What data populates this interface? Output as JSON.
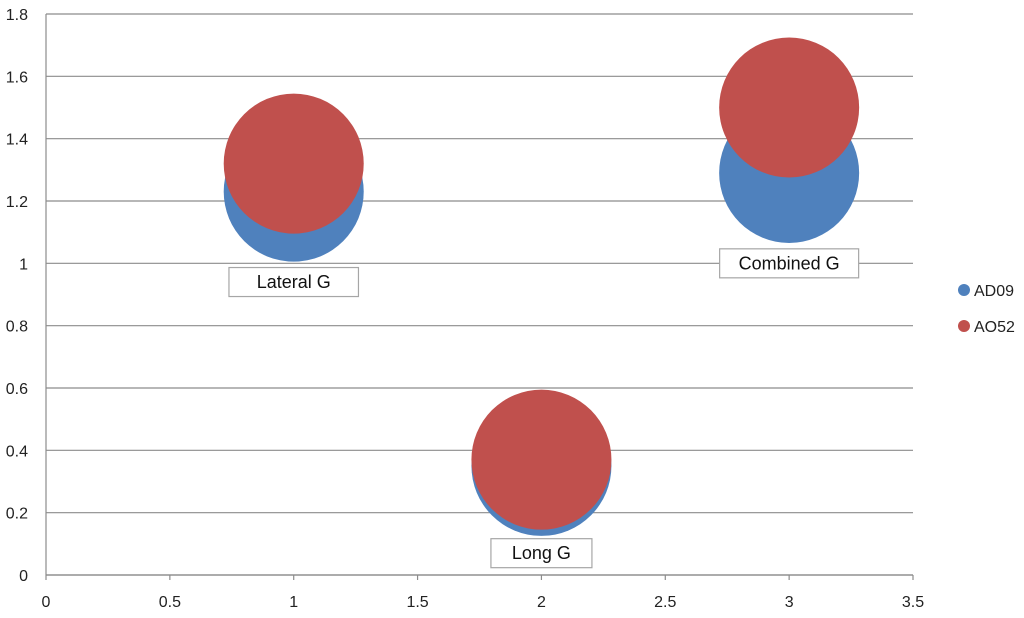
{
  "chart_data": {
    "type": "bubble",
    "title": "",
    "xlabel": "",
    "ylabel": "",
    "xlim": [
      0,
      3.5
    ],
    "ylim": [
      0,
      1.8
    ],
    "x_ticks": [
      "0",
      "0.5",
      "1",
      "1.5",
      "2",
      "2.5",
      "3",
      "3.5"
    ],
    "y_ticks": [
      "0",
      "0.2",
      "0.4",
      "0.6",
      "0.8",
      "1",
      "1.2",
      "1.4",
      "1.6",
      "1.8"
    ],
    "grid": "horizontal",
    "legend_position": "right",
    "series": [
      {
        "name": "AD09",
        "color": "#4F81BD",
        "points": [
          {
            "x": 1,
            "y": 1.23,
            "size": 1.0
          },
          {
            "x": 2,
            "y": 0.35,
            "size": 1.0
          },
          {
            "x": 3,
            "y": 1.29,
            "size": 1.0
          }
        ]
      },
      {
        "name": "AO52",
        "color": "#C0504D",
        "points": [
          {
            "x": 1,
            "y": 1.32,
            "size": 1.0
          },
          {
            "x": 2,
            "y": 0.37,
            "size": 1.0
          },
          {
            "x": 3,
            "y": 1.5,
            "size": 1.0
          }
        ]
      }
    ],
    "annotations": [
      {
        "text": "Lateral G",
        "x": 1,
        "y": 0.94
      },
      {
        "text": "Long G",
        "x": 2,
        "y": 0.07
      },
      {
        "text": "Combined G",
        "x": 3,
        "y": 1.0
      }
    ]
  }
}
